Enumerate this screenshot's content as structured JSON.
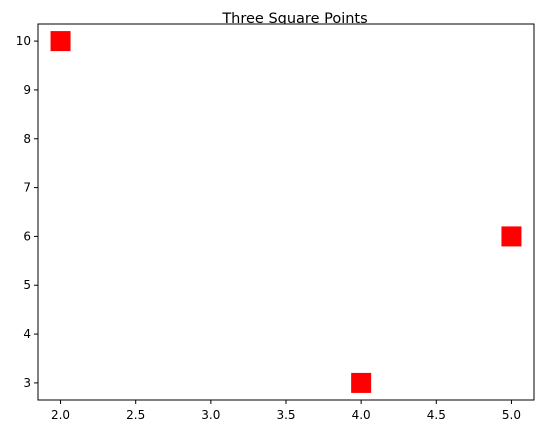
{
  "chart_data": {
    "type": "scatter",
    "title": "Three Square Points",
    "xlabel": "",
    "ylabel": "",
    "x": [
      2,
      4,
      5
    ],
    "y": [
      10,
      3,
      6
    ],
    "marker": "square",
    "marker_color": "#ff0000",
    "xlim": [
      1.85,
      5.15
    ],
    "ylim": [
      2.65,
      10.35
    ],
    "xticks": [
      2.0,
      2.5,
      3.0,
      3.5,
      4.0,
      4.5,
      5.0
    ],
    "xtick_labels": [
      "2.0",
      "2.5",
      "3.0",
      "3.5",
      "4.0",
      "4.5",
      "5.0"
    ],
    "yticks": [
      3,
      4,
      5,
      6,
      7,
      8,
      9,
      10
    ],
    "ytick_labels": [
      "3",
      "4",
      "5",
      "6",
      "7",
      "8",
      "9",
      "10"
    ],
    "grid": false,
    "legend": false
  }
}
